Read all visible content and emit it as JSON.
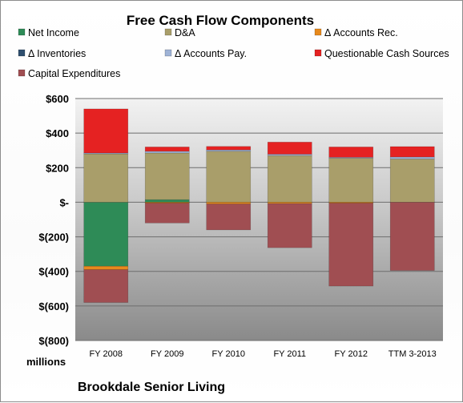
{
  "chart_data": {
    "type": "bar",
    "stacked": true,
    "title": "Free Cash Flow Components",
    "categories": [
      "FY 2008",
      "FY 2009",
      "FY 2010",
      "FY 2011",
      "FY 2012",
      "TTM 3-2013"
    ],
    "y_tick_labels": [
      "$600",
      "$400",
      "$200",
      "$-",
      "$(200)",
      "$(400)",
      "$(600)",
      "$(800)"
    ],
    "y_tick_values": [
      600,
      400,
      200,
      0,
      -200,
      -400,
      -600,
      -800
    ],
    "ylim": [
      -800,
      600
    ],
    "units_label": "millions",
    "footer": "Brookdale Senior Living",
    "legend_placement": "top",
    "grid": true,
    "series": [
      {
        "name": "Net Income",
        "color": "#2e8b57",
        "values": [
          -370,
          15,
          0,
          0,
          0,
          0
        ]
      },
      {
        "name": "D&A",
        "color": "#a99e6a",
        "values": [
          280,
          270,
          295,
          270,
          255,
          250
        ]
      },
      {
        "name": "Δ Accounts Rec.",
        "color": "#e7891c",
        "values": [
          -20,
          -5,
          -10,
          -8,
          -5,
          0
        ]
      },
      {
        "name": "Δ Inventories",
        "color": "#2f4f6f",
        "values": [
          0,
          0,
          0,
          0,
          0,
          0
        ]
      },
      {
        "name": "Δ Accounts Pay.",
        "color": "#9fb3d6",
        "values": [
          5,
          10,
          8,
          8,
          5,
          12
        ]
      },
      {
        "name": "Questionable Cash Sources",
        "color": "#e52222",
        "values": [
          255,
          25,
          20,
          70,
          60,
          60
        ]
      },
      {
        "name": "Capital Expenditures",
        "color": "#a04e52",
        "values": [
          -190,
          -115,
          -150,
          -255,
          -480,
          -395
        ]
      }
    ]
  }
}
